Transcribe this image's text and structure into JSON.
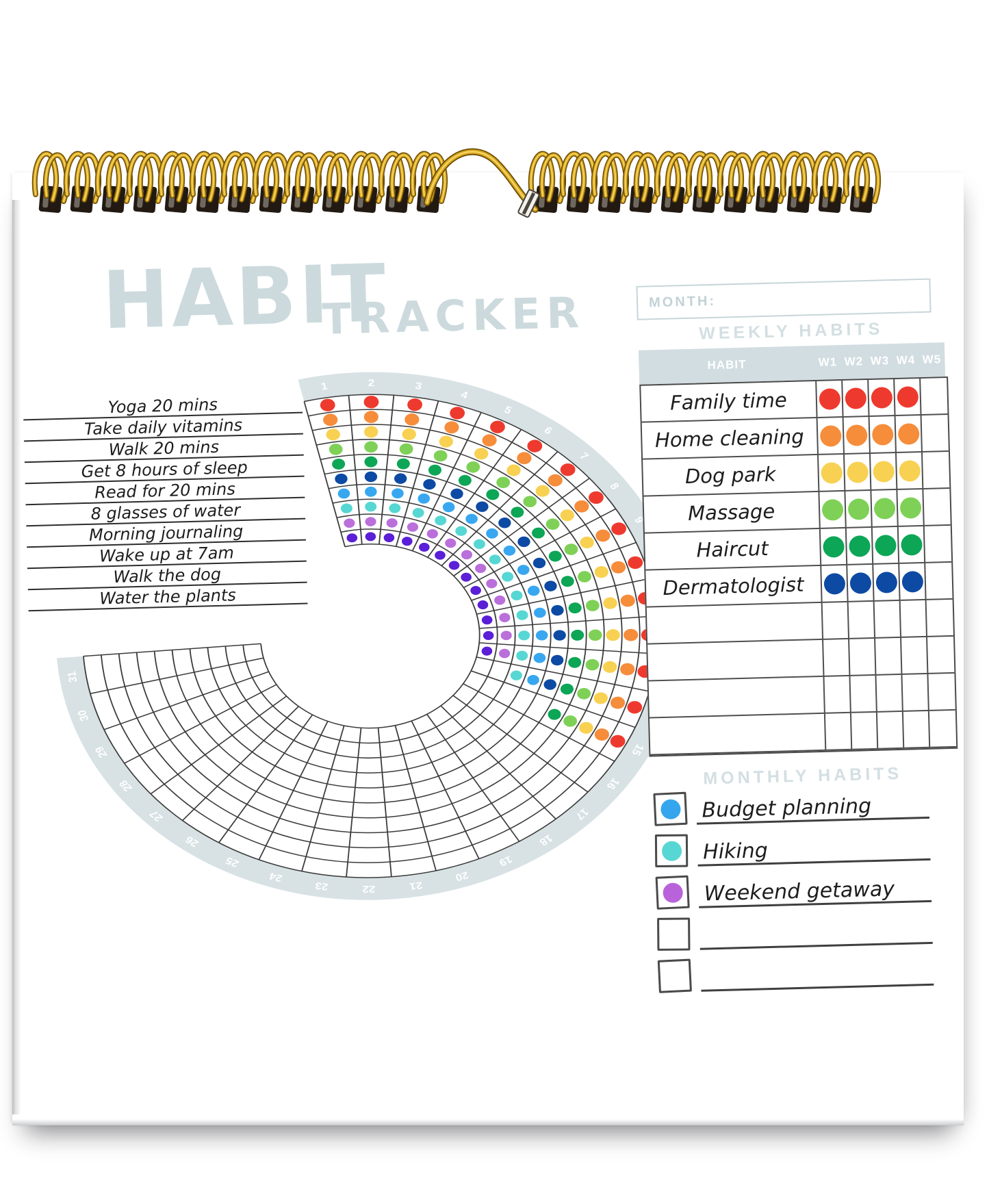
{
  "title": {
    "main": "HABIT",
    "sub": "TRACKER"
  },
  "month_field": {
    "label": "MONTH:",
    "value": ""
  },
  "weekly_habits": {
    "title": "WEEKLY HABITS",
    "habit_column_header": "HABIT",
    "week_headers": [
      "W1",
      "W2",
      "W3",
      "W4",
      "W5"
    ]
  },
  "monthly_habits": {
    "title": "MONTHLY HABITS",
    "items": [
      {
        "label": "Budget planning",
        "dot_color": "#35a5ee"
      },
      {
        "label": "Hiking",
        "dot_color": "#57d7d3"
      },
      {
        "label": "Weekend getaway",
        "dot_color": "#b863da"
      },
      {
        "label": "",
        "dot_color": ""
      },
      {
        "label": "",
        "dot_color": ""
      }
    ]
  },
  "chart_data": [
    {
      "type": "heatmap",
      "layout": "polar",
      "description": "Daily habit wheel: days 1-31 clockwise on outer band, one ring per habit (outermost ring first), a colored dot marks a completed day",
      "day_range": [
        1,
        31
      ],
      "series": [
        {
          "name": "Yoga 20 mins",
          "color": "#ee3a2e",
          "days_completed": 15
        },
        {
          "name": "Take daily vitamins",
          "color": "#f68d3b",
          "days_completed": 15
        },
        {
          "name": "Walk 20 mins",
          "color": "#f8d152",
          "days_completed": 15
        },
        {
          "name": "Get 8 hours of sleep",
          "color": "#7ed156",
          "days_completed": 15
        },
        {
          "name": "Read for 20 mins",
          "color": "#0ca656",
          "days_completed": 15
        },
        {
          "name": "8 glasses of water",
          "color": "#0d4aa4",
          "days_completed": 14
        },
        {
          "name": "Morning journaling",
          "color": "#38a7f0",
          "days_completed": 14
        },
        {
          "name": "Wake up at 7am",
          "color": "#57d7d3",
          "days_completed": 14
        },
        {
          "name": "Walk the dog",
          "color": "#ba6fdb",
          "days_completed": 13
        },
        {
          "name": "Water the plants",
          "color": "#5a1fd6",
          "days_completed": 13
        }
      ]
    },
    {
      "type": "table",
      "title": "WEEKLY HABITS",
      "columns": [
        "HABIT",
        "W1",
        "W2",
        "W3",
        "W4",
        "W5"
      ],
      "rows": [
        {
          "name": "Family time",
          "color": "#ee3a2e",
          "weeks": [
            true,
            true,
            true,
            true,
            false
          ]
        },
        {
          "name": "Home cleaning",
          "color": "#f68d3b",
          "weeks": [
            true,
            true,
            true,
            true,
            false
          ]
        },
        {
          "name": "Dog park",
          "color": "#f8d152",
          "weeks": [
            true,
            true,
            true,
            true,
            false
          ]
        },
        {
          "name": "Massage",
          "color": "#7ed156",
          "weeks": [
            true,
            true,
            true,
            true,
            false
          ]
        },
        {
          "name": "Haircut",
          "color": "#0ca656",
          "weeks": [
            true,
            true,
            true,
            true,
            false
          ]
        },
        {
          "name": "Dermatologist",
          "color": "#0d4aa4",
          "weeks": [
            true,
            true,
            true,
            true,
            false
          ]
        },
        {
          "name": "",
          "color": "",
          "weeks": [
            false,
            false,
            false,
            false,
            false
          ]
        },
        {
          "name": "",
          "color": "",
          "weeks": [
            false,
            false,
            false,
            false,
            false
          ]
        },
        {
          "name": "",
          "color": "",
          "weeks": [
            false,
            false,
            false,
            false,
            false
          ]
        },
        {
          "name": "",
          "color": "",
          "weeks": [
            false,
            false,
            false,
            false,
            false
          ]
        }
      ]
    }
  ],
  "palette": {
    "accent_light_blue": "#d2dde1",
    "day_band": "#d8e2e5",
    "grid_line": "#3b3b3b",
    "binding_gold": "#d7a61e",
    "paper": "#ffffff"
  }
}
